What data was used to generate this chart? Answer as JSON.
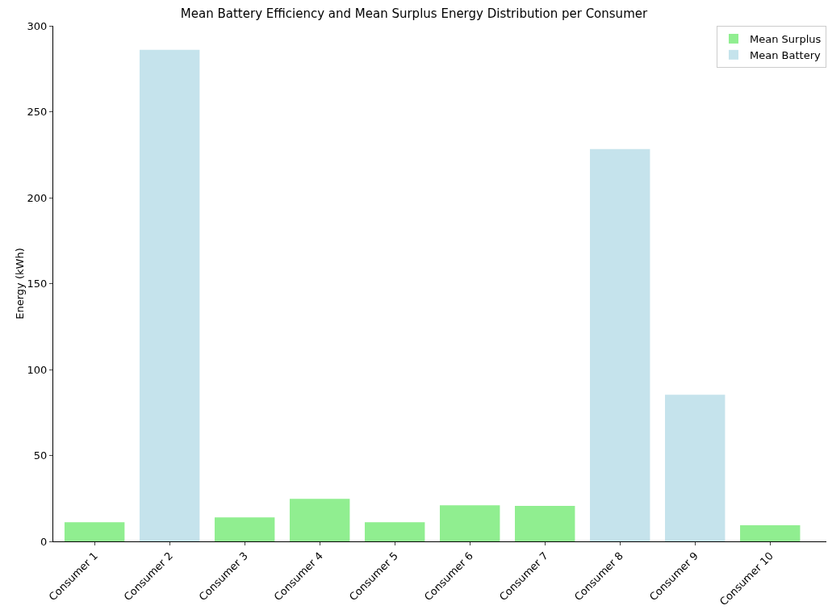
{
  "chart_data": {
    "type": "bar",
    "title": "Mean Battery Efficiency and Mean Surplus Energy Distribution per Consumer",
    "ylabel": "Energy (kWh)",
    "categories": [
      "Consumer 1",
      "Consumer 2",
      "Consumer 3",
      "Consumer 4",
      "Consumer 5",
      "Consumer 6",
      "Consumer 7",
      "Consumer 8",
      "Consumer 9",
      "Consumer 10"
    ],
    "series": [
      {
        "name": "Mean Surplus",
        "color": "#90ee90",
        "values": [
          11.2,
          null,
          14,
          24.8,
          11.2,
          21,
          20.6,
          null,
          null,
          9.4
        ]
      },
      {
        "name": "Mean Battery",
        "color": "#c5e3ec",
        "values": [
          null,
          286,
          null,
          null,
          null,
          null,
          null,
          228.3,
          85.3,
          null
        ]
      }
    ],
    "ylim": [
      0,
      300
    ],
    "yticks": [
      0,
      50,
      100,
      150,
      200,
      250,
      300
    ],
    "grid": false,
    "legend": "top right"
  }
}
